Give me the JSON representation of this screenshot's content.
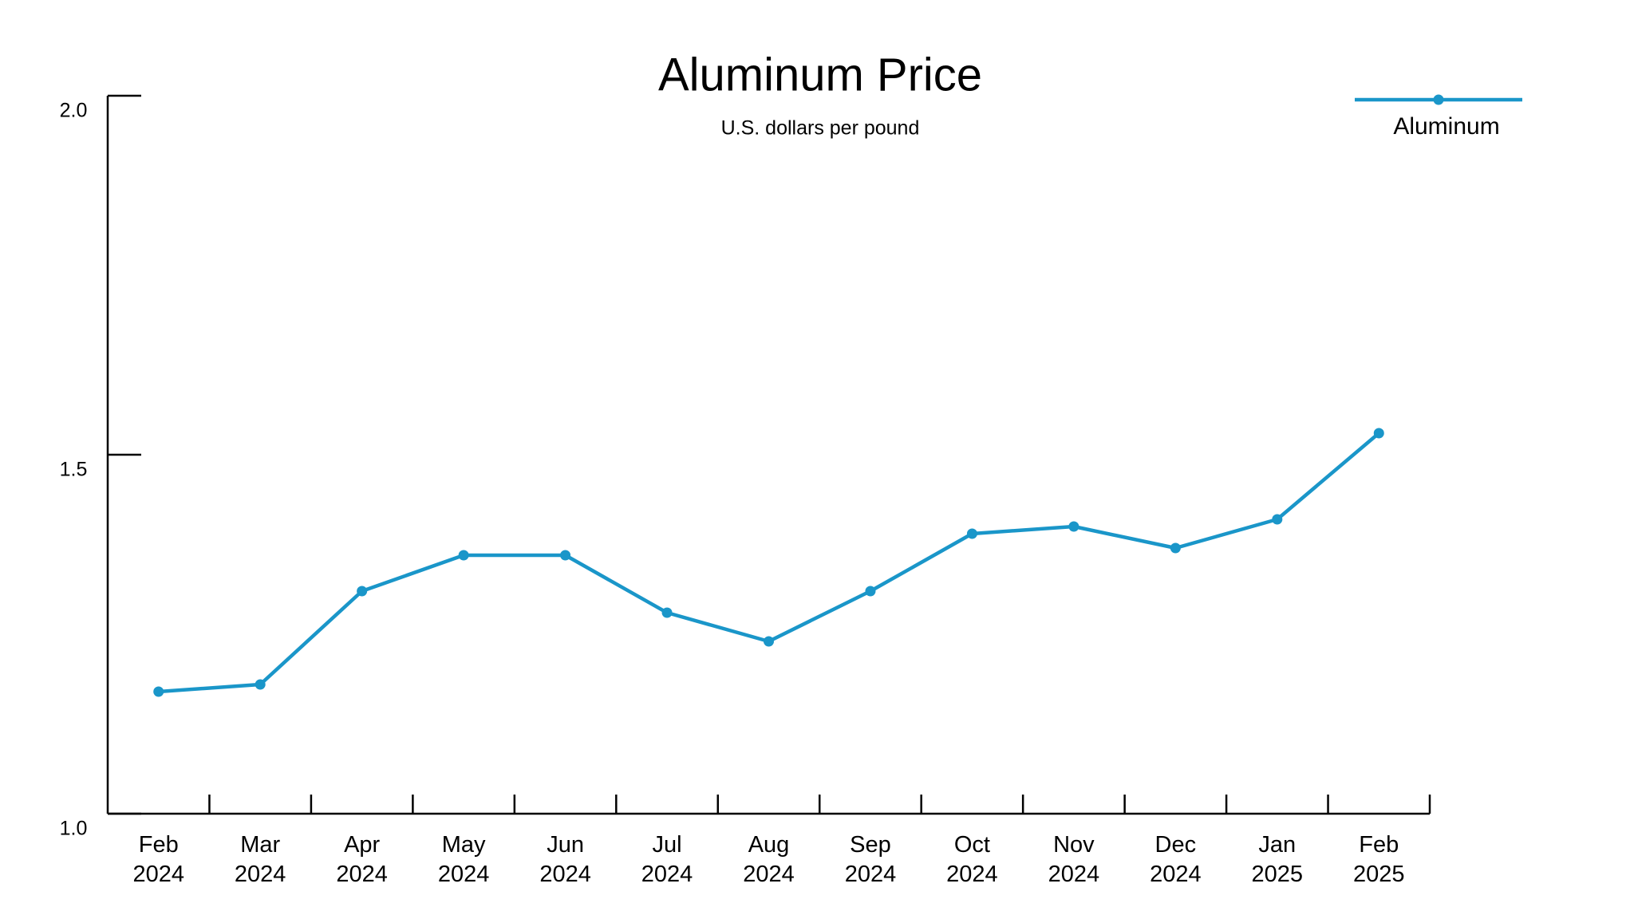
{
  "chart_data": {
    "type": "line",
    "title": "Aluminum Price",
    "subtitle": "U.S. dollars per pound",
    "categories": [
      "Feb 2024",
      "Mar 2024",
      "Apr 2024",
      "May 2024",
      "Jun 2024",
      "Jul 2024",
      "Aug 2024",
      "Sep 2024",
      "Oct 2024",
      "Nov 2024",
      "Dec 2024",
      "Jan 2025",
      "Feb 2025"
    ],
    "series": [
      {
        "name": "Aluminum",
        "color": "#1a96c9",
        "values": [
          1.17,
          1.18,
          1.31,
          1.36,
          1.36,
          1.28,
          1.24,
          1.31,
          1.39,
          1.4,
          1.37,
          1.41,
          1.53
        ]
      }
    ],
    "ylim": [
      1,
      2
    ],
    "yticks": [
      {
        "value": 1,
        "label": "1.0"
      },
      {
        "value": 1.5,
        "label": "1.5"
      },
      {
        "value": 2,
        "label": "2.0"
      }
    ],
    "legend": "top-right"
  }
}
